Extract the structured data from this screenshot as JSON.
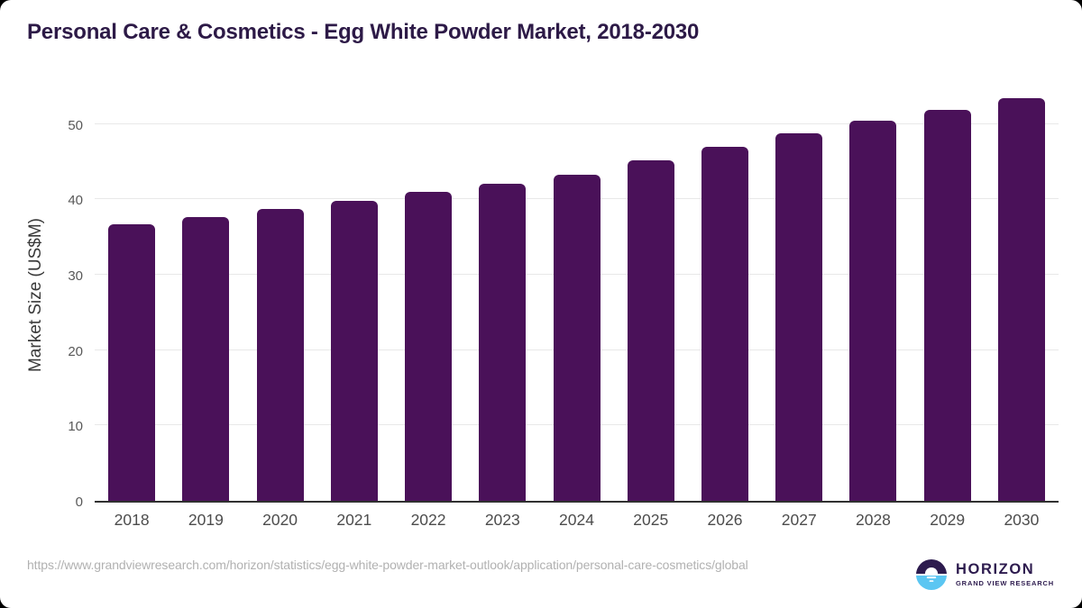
{
  "page": {
    "title": "Personal Care & Cosmetics - Egg White Powder Market, 2018-2030",
    "title_color": "#2d1a47",
    "source_url": "https://www.grandviewresearch.com/horizon/statistics/egg-white-powder-market-outlook/application/personal-care-cosmetics/global"
  },
  "branding": {
    "logo_name": "HORIZON",
    "logo_subtitle": "GRAND VIEW RESEARCH",
    "icon": "sun-over-horizon-icon",
    "logo_purple": "#2d1b4e",
    "logo_blue": "#5bc6f2"
  },
  "chart_data": {
    "type": "bar",
    "title": "Personal Care & Cosmetics - Egg White Powder Market, 2018-2030",
    "categories": [
      "2018",
      "2019",
      "2020",
      "2021",
      "2022",
      "2023",
      "2024",
      "2025",
      "2026",
      "2027",
      "2028",
      "2029",
      "2030"
    ],
    "values": [
      36.7,
      37.7,
      38.8,
      39.8,
      41.0,
      42.1,
      43.3,
      45.2,
      47.0,
      48.8,
      50.4,
      51.9,
      53.5
    ],
    "xlabel": "",
    "ylabel": "Market Size (US$M)",
    "yticks": [
      0,
      10,
      20,
      30,
      40,
      50
    ],
    "ylim": [
      0,
      55
    ],
    "bar_color": "#4a1159",
    "grid": true,
    "legend": false
  }
}
